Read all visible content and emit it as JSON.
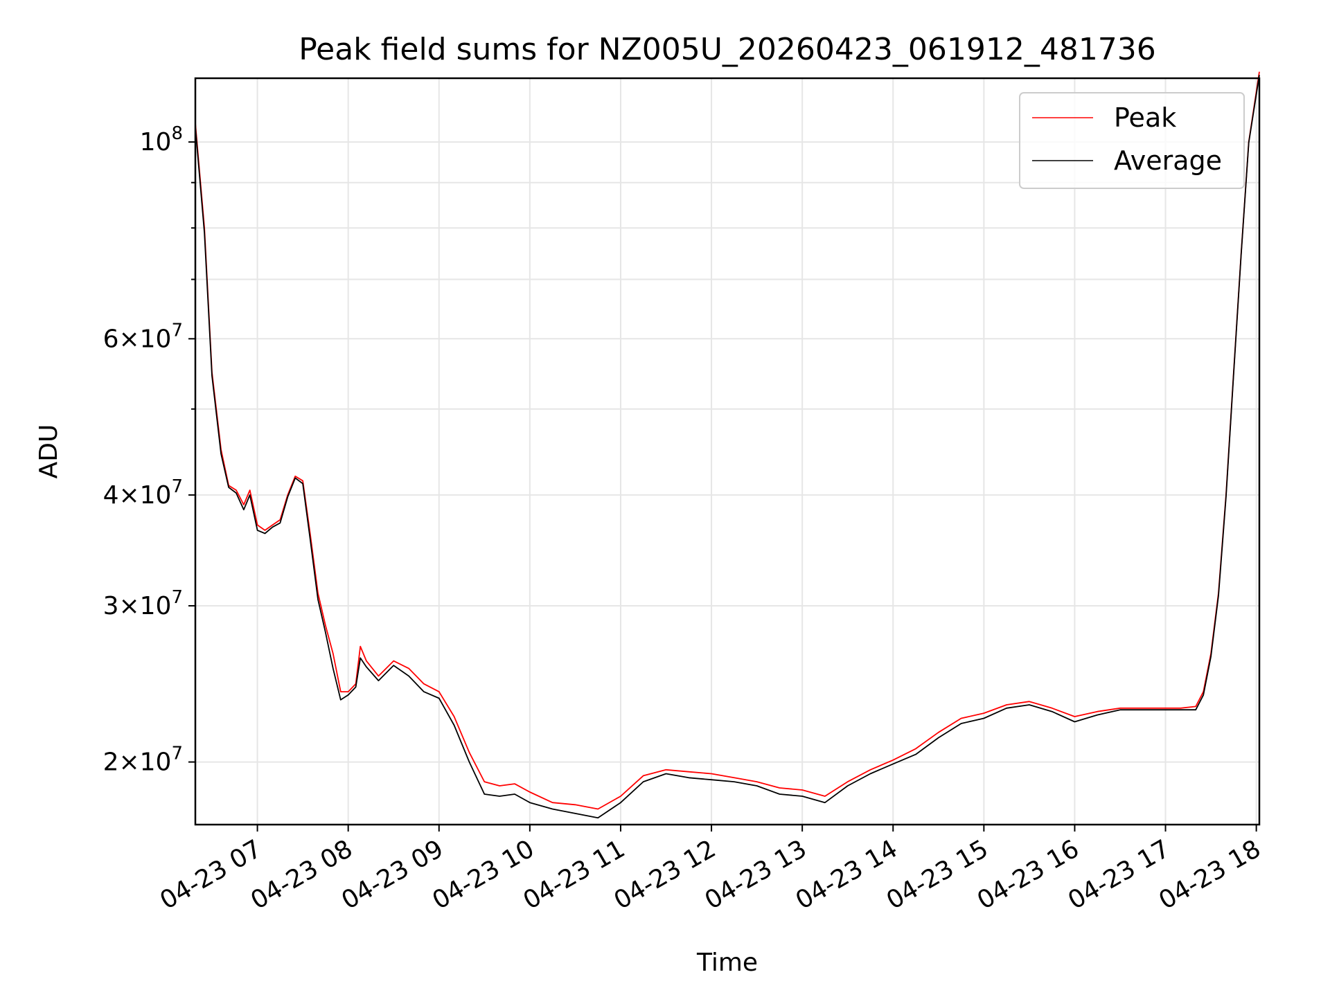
{
  "chart_data": {
    "type": "line",
    "title": "Peak field sums for NZ005U_20260423_061912_481736",
    "xlabel": "Time",
    "ylabel": "ADU",
    "y_scale": "log",
    "ylim": [
      17000000,
      118000000
    ],
    "xlim": [
      "2026-04-23 06:19",
      "2026-04-23 18:02"
    ],
    "grid": true,
    "legend_position": "top-right",
    "x_ticks": [
      {
        "t": "2026-04-23 07:00",
        "label": "04-23 07"
      },
      {
        "t": "2026-04-23 08:00",
        "label": "04-23 08"
      },
      {
        "t": "2026-04-23 09:00",
        "label": "04-23 09"
      },
      {
        "t": "2026-04-23 10:00",
        "label": "04-23 10"
      },
      {
        "t": "2026-04-23 11:00",
        "label": "04-23 11"
      },
      {
        "t": "2026-04-23 12:00",
        "label": "04-23 12"
      },
      {
        "t": "2026-04-23 13:00",
        "label": "04-23 13"
      },
      {
        "t": "2026-04-23 14:00",
        "label": "04-23 14"
      },
      {
        "t": "2026-04-23 15:00",
        "label": "04-23 15"
      },
      {
        "t": "2026-04-23 16:00",
        "label": "04-23 16"
      },
      {
        "t": "2026-04-23 17:00",
        "label": "04-23 17"
      },
      {
        "t": "2026-04-23 18:00",
        "label": "04-23 18"
      }
    ],
    "y_ticks_major": [
      {
        "value": 20000000,
        "mantissa": "2",
        "exponent": "7"
      },
      {
        "value": 30000000,
        "mantissa": "3",
        "exponent": "7"
      },
      {
        "value": 40000000,
        "mantissa": "4",
        "exponent": "7"
      },
      {
        "value": 60000000,
        "mantissa": "6",
        "exponent": "7"
      },
      {
        "value": 100000000,
        "mantissa": "",
        "exponent": "8"
      }
    ],
    "y_ticks_minor": [
      50000000,
      70000000,
      80000000,
      90000000
    ],
    "series": [
      {
        "name": "Peak",
        "color": "#ff0000",
        "x": [
          "2026-04-23 06:19",
          "2026-04-23 06:25",
          "2026-04-23 06:30",
          "2026-04-23 06:36",
          "2026-04-23 06:41",
          "2026-04-23 06:46",
          "2026-04-23 06:51",
          "2026-04-23 06:55",
          "2026-04-23 07:00",
          "2026-04-23 07:05",
          "2026-04-23 07:10",
          "2026-04-23 07:15",
          "2026-04-23 07:20",
          "2026-04-23 07:25",
          "2026-04-23 07:30",
          "2026-04-23 07:35",
          "2026-04-23 07:40",
          "2026-04-23 07:45",
          "2026-04-23 07:50",
          "2026-04-23 07:55",
          "2026-04-23 08:00",
          "2026-04-23 08:05",
          "2026-04-23 08:08",
          "2026-04-23 08:12",
          "2026-04-23 08:20",
          "2026-04-23 08:30",
          "2026-04-23 08:40",
          "2026-04-23 08:50",
          "2026-04-23 09:00",
          "2026-04-23 09:10",
          "2026-04-23 09:20",
          "2026-04-23 09:30",
          "2026-04-23 09:40",
          "2026-04-23 09:50",
          "2026-04-23 10:00",
          "2026-04-23 10:15",
          "2026-04-23 10:30",
          "2026-04-23 10:45",
          "2026-04-23 11:00",
          "2026-04-23 11:15",
          "2026-04-23 11:30",
          "2026-04-23 11:45",
          "2026-04-23 12:00",
          "2026-04-23 12:15",
          "2026-04-23 12:30",
          "2026-04-23 12:45",
          "2026-04-23 13:00",
          "2026-04-23 13:15",
          "2026-04-23 13:30",
          "2026-04-23 13:45",
          "2026-04-23 14:00",
          "2026-04-23 14:15",
          "2026-04-23 14:30",
          "2026-04-23 14:45",
          "2026-04-23 15:00",
          "2026-04-23 15:15",
          "2026-04-23 15:30",
          "2026-04-23 15:45",
          "2026-04-23 16:00",
          "2026-04-23 16:15",
          "2026-04-23 16:30",
          "2026-04-23 16:45",
          "2026-04-23 17:00",
          "2026-04-23 17:10",
          "2026-04-23 17:20",
          "2026-04-23 17:25",
          "2026-04-23 17:30",
          "2026-04-23 17:35",
          "2026-04-23 17:40",
          "2026-04-23 17:45",
          "2026-04-23 17:50",
          "2026-04-23 17:55",
          "2026-04-23 18:02"
        ],
        "y": [
          105000000,
          80000000,
          55000000,
          45000000,
          41000000,
          40500000,
          39000000,
          40500000,
          37000000,
          36500000,
          37000000,
          37500000,
          40000000,
          42000000,
          41500000,
          36000000,
          31000000,
          28500000,
          26500000,
          24000000,
          24000000,
          24500000,
          27000000,
          26000000,
          25000000,
          26000000,
          25500000,
          24500000,
          24000000,
          22500000,
          20500000,
          19000000,
          18800000,
          18900000,
          18500000,
          18000000,
          17900000,
          17700000,
          18300000,
          19300000,
          19600000,
          19500000,
          19400000,
          19200000,
          19000000,
          18700000,
          18600000,
          18300000,
          19000000,
          19600000,
          20100000,
          20700000,
          21600000,
          22400000,
          22700000,
          23200000,
          23400000,
          23000000,
          22500000,
          22800000,
          23000000,
          23000000,
          23000000,
          23000000,
          23100000,
          24000000,
          26500000,
          31000000,
          40000000,
          55000000,
          75000000,
          100000000,
          120000000
        ]
      },
      {
        "name": "Average",
        "color": "#000000",
        "x": [
          "2026-04-23 06:19",
          "2026-04-23 06:25",
          "2026-04-23 06:30",
          "2026-04-23 06:36",
          "2026-04-23 06:41",
          "2026-04-23 06:46",
          "2026-04-23 06:51",
          "2026-04-23 06:55",
          "2026-04-23 07:00",
          "2026-04-23 07:05",
          "2026-04-23 07:10",
          "2026-04-23 07:15",
          "2026-04-23 07:20",
          "2026-04-23 07:25",
          "2026-04-23 07:30",
          "2026-04-23 07:35",
          "2026-04-23 07:40",
          "2026-04-23 07:45",
          "2026-04-23 07:50",
          "2026-04-23 07:55",
          "2026-04-23 08:00",
          "2026-04-23 08:05",
          "2026-04-23 08:08",
          "2026-04-23 08:12",
          "2026-04-23 08:20",
          "2026-04-23 08:30",
          "2026-04-23 08:40",
          "2026-04-23 08:50",
          "2026-04-23 09:00",
          "2026-04-23 09:10",
          "2026-04-23 09:20",
          "2026-04-23 09:30",
          "2026-04-23 09:40",
          "2026-04-23 09:50",
          "2026-04-23 10:00",
          "2026-04-23 10:15",
          "2026-04-23 10:30",
          "2026-04-23 10:45",
          "2026-04-23 11:00",
          "2026-04-23 11:15",
          "2026-04-23 11:30",
          "2026-04-23 11:45",
          "2026-04-23 12:00",
          "2026-04-23 12:15",
          "2026-04-23 12:30",
          "2026-04-23 12:45",
          "2026-04-23 13:00",
          "2026-04-23 13:15",
          "2026-04-23 13:30",
          "2026-04-23 13:45",
          "2026-04-23 14:00",
          "2026-04-23 14:15",
          "2026-04-23 14:30",
          "2026-04-23 14:45",
          "2026-04-23 15:00",
          "2026-04-23 15:15",
          "2026-04-23 15:30",
          "2026-04-23 15:45",
          "2026-04-23 16:00",
          "2026-04-23 16:15",
          "2026-04-23 16:30",
          "2026-04-23 16:45",
          "2026-04-23 17:00",
          "2026-04-23 17:10",
          "2026-04-23 17:20",
          "2026-04-23 17:25",
          "2026-04-23 17:30",
          "2026-04-23 17:35",
          "2026-04-23 17:40",
          "2026-04-23 17:45",
          "2026-04-23 17:50",
          "2026-04-23 17:55",
          "2026-04-23 18:02"
        ],
        "y": [
          104000000,
          79000000,
          54500000,
          44500000,
          40800000,
          40200000,
          38500000,
          40000000,
          36500000,
          36200000,
          36800000,
          37200000,
          39800000,
          41800000,
          41200000,
          35500000,
          30500000,
          28000000,
          25500000,
          23500000,
          23800000,
          24300000,
          26200000,
          25600000,
          24700000,
          25700000,
          25000000,
          24000000,
          23600000,
          22000000,
          20000000,
          18400000,
          18300000,
          18400000,
          18000000,
          17700000,
          17500000,
          17300000,
          18000000,
          19000000,
          19400000,
          19200000,
          19100000,
          19000000,
          18800000,
          18400000,
          18300000,
          18000000,
          18800000,
          19400000,
          19900000,
          20400000,
          21300000,
          22100000,
          22400000,
          23000000,
          23200000,
          22800000,
          22200000,
          22600000,
          22900000,
          22900000,
          22900000,
          22900000,
          22900000,
          23800000,
          26300000,
          30800000,
          39800000,
          54800000,
          74800000,
          99800000,
          119000000
        ]
      }
    ]
  }
}
